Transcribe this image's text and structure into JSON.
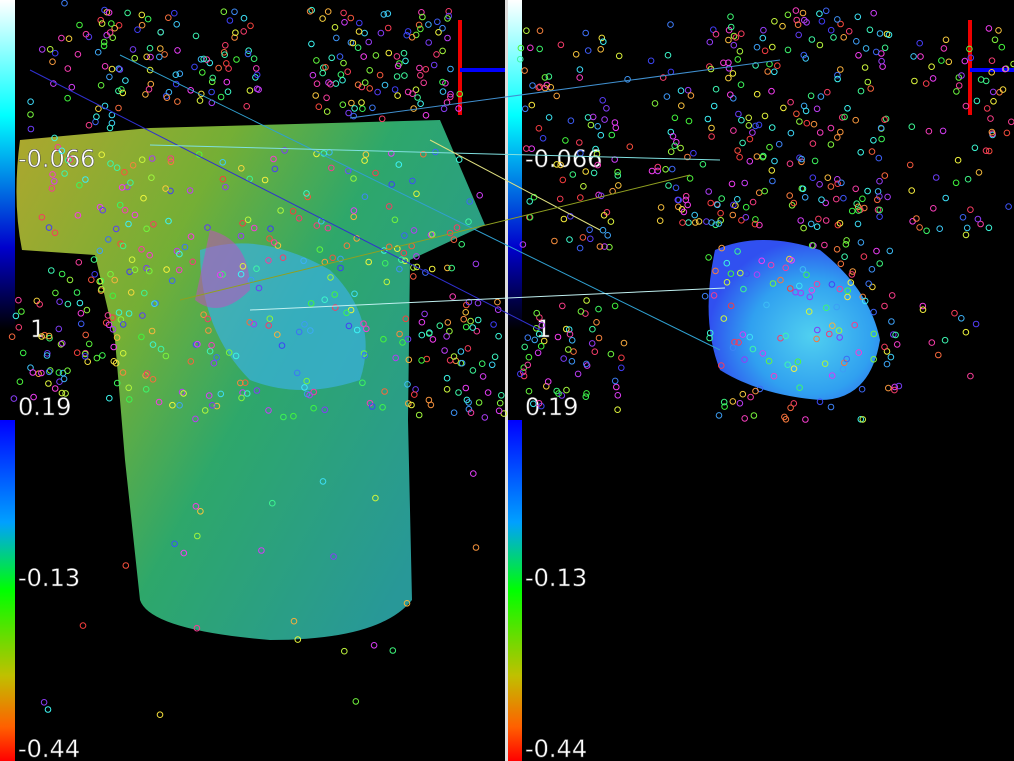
{
  "panels": [
    {
      "colorbar_labels": [
        "-0.066",
        "1",
        "0.19",
        "-0.13",
        "-0.44"
      ]
    },
    {
      "colorbar_labels": [
        "-0.066",
        "1",
        "0.19",
        "-0.13",
        "-0.44"
      ]
    }
  ]
}
